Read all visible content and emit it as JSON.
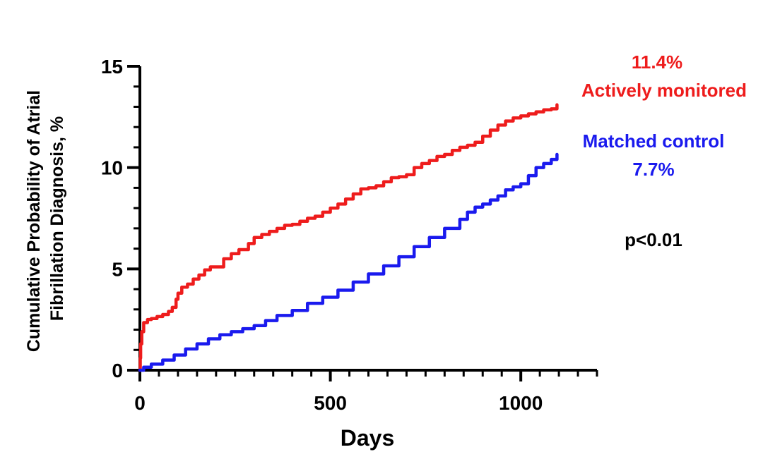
{
  "chart_data": {
    "type": "line",
    "title": "",
    "xlabel": "Days",
    "ylabel_lines": [
      "Cumulative Probability of Atrial",
      "Fibrillation Diagnosis, %"
    ],
    "xlim": [
      0,
      1200
    ],
    "ylim": [
      0,
      15
    ],
    "x_ticks": [
      0,
      500,
      1000
    ],
    "x_tick_labels": [
      "0",
      "500",
      "1000"
    ],
    "x_minor_step": 50,
    "y_ticks": [
      0,
      5,
      10,
      15
    ],
    "y_tick_labels": [
      "0",
      "5",
      "10",
      "15"
    ],
    "y_minor_step": 1,
    "grid": false,
    "legend_placement": "right",
    "series": [
      {
        "name": "Actively monitored",
        "percent_label": "11.4%",
        "color": "#ee1c1c",
        "x": [
          0,
          1,
          2,
          5,
          10,
          20,
          30,
          45,
          60,
          75,
          85,
          95,
          100,
          110,
          125,
          140,
          155,
          170,
          185,
          200,
          220,
          240,
          260,
          285,
          300,
          320,
          340,
          360,
          380,
          400,
          420,
          440,
          460,
          480,
          500,
          520,
          540,
          560,
          580,
          600,
          620,
          640,
          660,
          680,
          700,
          720,
          740,
          760,
          780,
          800,
          820,
          840,
          860,
          880,
          900,
          920,
          940,
          960,
          980,
          1000,
          1020,
          1040,
          1060,
          1080,
          1095
        ],
        "y": [
          0,
          0.6,
          1.3,
          1.9,
          2.35,
          2.5,
          2.55,
          2.65,
          2.75,
          2.9,
          3.1,
          3.5,
          3.8,
          4.1,
          4.25,
          4.5,
          4.7,
          4.95,
          5.1,
          5.1,
          5.5,
          5.75,
          5.95,
          6.25,
          6.55,
          6.7,
          6.85,
          7.0,
          7.15,
          7.2,
          7.35,
          7.5,
          7.6,
          7.8,
          8.0,
          8.2,
          8.45,
          8.7,
          8.95,
          9.0,
          9.1,
          9.3,
          9.5,
          9.55,
          9.65,
          10.0,
          10.2,
          10.35,
          10.55,
          10.65,
          10.85,
          11.0,
          11.1,
          11.25,
          11.55,
          11.85,
          12.1,
          12.3,
          12.45,
          12.55,
          12.65,
          12.75,
          12.85,
          12.9,
          13.1
        ]
      },
      {
        "name": "Matched control",
        "percent_label": "7.7%",
        "color": "#1a1aee",
        "x": [
          0,
          10,
          30,
          60,
          90,
          120,
          150,
          180,
          210,
          240,
          270,
          300,
          330,
          360,
          400,
          440,
          480,
          520,
          560,
          600,
          640,
          680,
          720,
          760,
          800,
          840,
          860,
          880,
          900,
          920,
          940,
          960,
          980,
          1000,
          1020,
          1040,
          1060,
          1080,
          1095
        ],
        "y": [
          0,
          0.15,
          0.3,
          0.5,
          0.75,
          1.05,
          1.3,
          1.55,
          1.75,
          1.9,
          2.05,
          2.2,
          2.45,
          2.7,
          2.95,
          3.3,
          3.6,
          3.95,
          4.35,
          4.75,
          5.15,
          5.6,
          6.1,
          6.55,
          7.0,
          7.45,
          7.8,
          8.05,
          8.2,
          8.4,
          8.6,
          8.9,
          9.05,
          9.2,
          9.6,
          10.0,
          10.2,
          10.4,
          10.65
        ]
      }
    ],
    "annotations": {
      "pvalue": "p<0.01"
    }
  }
}
